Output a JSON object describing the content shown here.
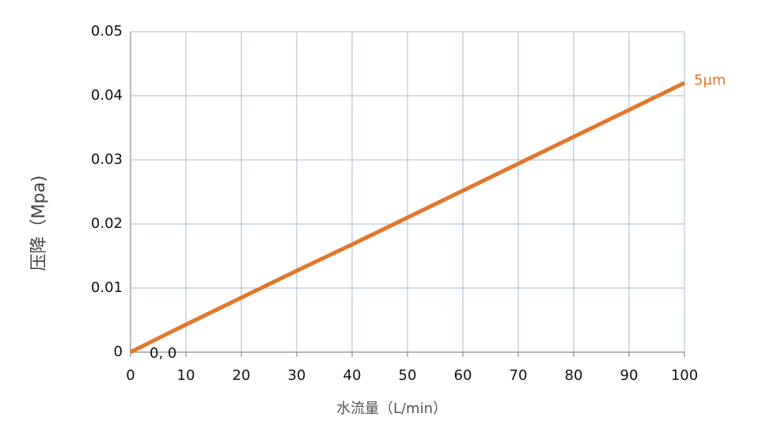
{
  "chart_data": {
    "type": "line",
    "x_label": "水流量（L/min）",
    "y_label": "压降（Mpa)",
    "x": [
      0,
      6,
      10,
      20,
      30,
      40,
      50,
      60,
      70,
      80,
      90,
      100
    ],
    "series": [
      {
        "name": "5μm",
        "color": "#e2772b",
        "values": [
          0,
          0.0026,
          0.0043,
          0.0085,
          0.0127,
          0.0168,
          0.021,
          0.0252,
          0.0294,
          0.0336,
          0.0378,
          0.042
        ]
      }
    ],
    "annotations": [
      "0, 0"
    ],
    "xlim": [
      0,
      100
    ],
    "xticks": [
      0,
      10,
      20,
      30,
      40,
      50,
      60,
      70,
      80,
      90,
      100
    ],
    "ylim": [
      0,
      0.05
    ],
    "yticks": [
      0,
      0.01,
      0.02,
      0.03,
      0.04,
      0.05
    ],
    "grid": true
  }
}
